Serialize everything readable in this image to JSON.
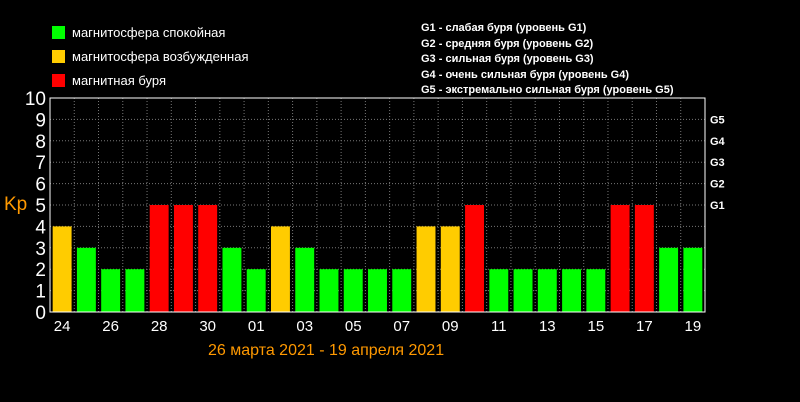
{
  "legend": {
    "items": [
      {
        "label": "магнитосфера спокойная",
        "color": "#00ff00"
      },
      {
        "label": "магнитосфера возбужденная",
        "color": "#ffcc00"
      },
      {
        "label": "магнитная буря",
        "color": "#ff0000"
      }
    ],
    "storm_levels": [
      "G1 - слабая буря (уровень G1)",
      "G2 - средняя буря (уровень G2)",
      "G3 - сильная буря (уровень G3)",
      "G4 - очень сильная буря (уровень G4)",
      "G5 - экстремально сильная буря (уровень G5)"
    ]
  },
  "date_range": "26 марта 2021 - 19 апреля 2021",
  "chart_data": {
    "type": "bar",
    "ylabel": "Kp",
    "ylim": [
      0,
      10
    ],
    "yticks": [
      "0",
      "1",
      "2",
      "3",
      "4",
      "5",
      "6",
      "7",
      "8",
      "9",
      "10"
    ],
    "right_ticks": [
      {
        "label": "G1",
        "value": 5
      },
      {
        "label": "G2",
        "value": 6
      },
      {
        "label": "G3",
        "value": 7
      },
      {
        "label": "G4",
        "value": 8
      },
      {
        "label": "G5",
        "value": 9
      }
    ],
    "xtick_labels": [
      "24",
      "26",
      "28",
      "30",
      "01",
      "03",
      "05",
      "07",
      "09",
      "11",
      "13",
      "15",
      "17",
      "19"
    ],
    "values": [
      4,
      3,
      2,
      2,
      5,
      5,
      5,
      3,
      2,
      4,
      3,
      2,
      2,
      2,
      2,
      4,
      4,
      5,
      2,
      2,
      2,
      2,
      2,
      5,
      5,
      3,
      3
    ],
    "colors": {
      "quiet": "#00ff00",
      "active": "#ffcc00",
      "storm": "#ff0000"
    },
    "grid": true
  }
}
